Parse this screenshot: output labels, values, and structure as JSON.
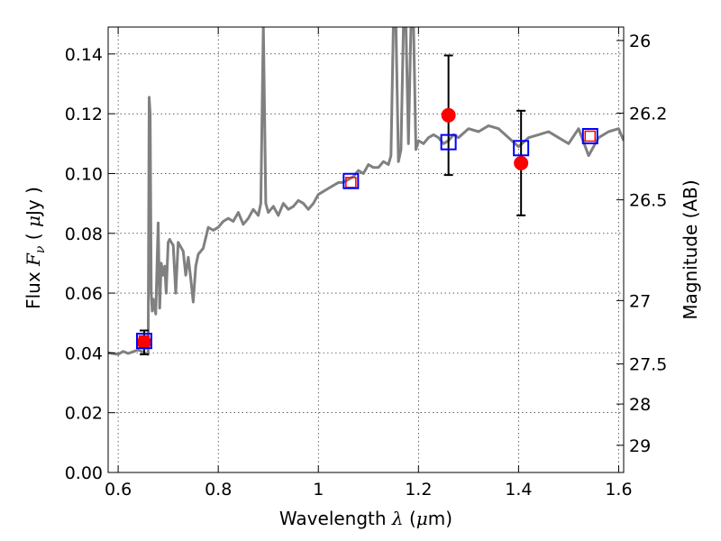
{
  "chart_data": {
    "type": "line",
    "xlabel": "Wavelength  λ (μm)",
    "ylabel": "Flux  Fν ( μJy )",
    "y2label": "Magnitude (AB)",
    "xlim": [
      0.58,
      1.61
    ],
    "ylim": [
      0.0,
      0.149
    ],
    "xticks": [
      0.6,
      0.8,
      1.0,
      1.2,
      1.4,
      1.6
    ],
    "xtick_labels": [
      "0.6",
      "0.8",
      "1",
      "1.2",
      "1.4",
      "1.6"
    ],
    "yticks": [
      0.0,
      0.02,
      0.04,
      0.06,
      0.08,
      0.1,
      0.12,
      0.14
    ],
    "ytick_labels": [
      "0.00",
      "0.02",
      "0.04",
      "0.06",
      "0.08",
      "0.10",
      "0.12",
      "0.14"
    ],
    "y2ticks": [
      {
        "flux": 0.1445,
        "label": "26"
      },
      {
        "flux": 0.1202,
        "label": "26.2"
      },
      {
        "flux": 0.0912,
        "label": "26.5"
      },
      {
        "flux": 0.0575,
        "label": "27"
      },
      {
        "flux": 0.0363,
        "label": "27.5"
      },
      {
        "flux": 0.0229,
        "label": "28"
      },
      {
        "flux": 0.0091,
        "label": "29"
      }
    ],
    "grid": true,
    "series": [
      {
        "kind": "model-spectrum",
        "color": "#808080",
        "x": [
          0.58,
          0.6,
          0.61,
          0.62,
          0.64,
          0.66,
          0.662,
          0.664,
          0.666,
          0.668,
          0.67,
          0.675,
          0.68,
          0.683,
          0.686,
          0.69,
          0.693,
          0.696,
          0.7,
          0.703,
          0.706,
          0.71,
          0.715,
          0.72,
          0.73,
          0.735,
          0.74,
          0.745,
          0.75,
          0.755,
          0.76,
          0.77,
          0.78,
          0.79,
          0.8,
          0.81,
          0.82,
          0.83,
          0.84,
          0.85,
          0.86,
          0.87,
          0.88,
          0.885,
          0.89,
          0.895,
          0.9,
          0.91,
          0.92,
          0.93,
          0.94,
          0.95,
          0.96,
          0.97,
          0.98,
          0.99,
          1.0,
          1.01,
          1.02,
          1.03,
          1.04,
          1.05,
          1.06,
          1.07,
          1.08,
          1.09,
          1.1,
          1.11,
          1.12,
          1.13,
          1.14,
          1.145,
          1.15,
          1.155,
          1.16,
          1.165,
          1.17,
          1.175,
          1.18,
          1.185,
          1.19,
          1.195,
          1.2,
          1.21,
          1.22,
          1.23,
          1.24,
          1.25,
          1.26,
          1.27,
          1.28,
          1.3,
          1.32,
          1.34,
          1.36,
          1.38,
          1.4,
          1.42,
          1.44,
          1.46,
          1.48,
          1.5,
          1.52,
          1.54,
          1.56,
          1.58,
          1.6,
          1.61
        ],
        "y": [
          0.04,
          0.0395,
          0.0405,
          0.0398,
          0.041,
          0.0395,
          0.1255,
          0.12,
          0.06,
          0.054,
          0.058,
          0.053,
          0.0835,
          0.055,
          0.07,
          0.066,
          0.069,
          0.06,
          0.077,
          0.078,
          0.077,
          0.076,
          0.06,
          0.077,
          0.074,
          0.066,
          0.072,
          0.065,
          0.057,
          0.069,
          0.073,
          0.075,
          0.082,
          0.081,
          0.082,
          0.084,
          0.085,
          0.084,
          0.087,
          0.083,
          0.085,
          0.088,
          0.086,
          0.09,
          0.15,
          0.09,
          0.087,
          0.089,
          0.086,
          0.09,
          0.088,
          0.089,
          0.091,
          0.09,
          0.088,
          0.09,
          0.093,
          0.094,
          0.095,
          0.096,
          0.097,
          0.097,
          0.098,
          0.099,
          0.101,
          0.1,
          0.103,
          0.102,
          0.102,
          0.104,
          0.103,
          0.106,
          0.15,
          0.15,
          0.104,
          0.108,
          0.15,
          0.15,
          0.11,
          0.15,
          0.15,
          0.108,
          0.111,
          0.11,
          0.112,
          0.113,
          0.112,
          0.11,
          0.111,
          0.113,
          0.112,
          0.115,
          0.114,
          0.116,
          0.115,
          0.112,
          0.109,
          0.112,
          0.113,
          0.114,
          0.112,
          0.11,
          0.115,
          0.106,
          0.112,
          0.114,
          0.115,
          0.111
        ]
      },
      {
        "kind": "observed-points",
        "color": "#ff0000",
        "points": [
          {
            "x": 0.652,
            "y": 0.0435,
            "err": 0.004
          },
          {
            "x": 1.26,
            "y": 0.1195,
            "err": 0.02
          },
          {
            "x": 1.405,
            "y": 0.1035,
            "err": 0.0175
          }
        ]
      },
      {
        "kind": "model-photometry",
        "color": "#0000ff",
        "marker": "square",
        "points": [
          {
            "x": 0.652,
            "y": 0.044
          },
          {
            "x": 1.065,
            "y": 0.0975
          },
          {
            "x": 1.26,
            "y": 0.1105
          },
          {
            "x": 1.405,
            "y": 0.1085
          },
          {
            "x": 1.543,
            "y": 0.1125
          }
        ]
      },
      {
        "kind": "observed-squares",
        "color": "#ff0000",
        "marker": "square",
        "points": [
          {
            "x": 0.652,
            "y": 0.044
          },
          {
            "x": 1.065,
            "y": 0.097
          },
          {
            "x": 1.543,
            "y": 0.1125
          }
        ]
      }
    ]
  }
}
